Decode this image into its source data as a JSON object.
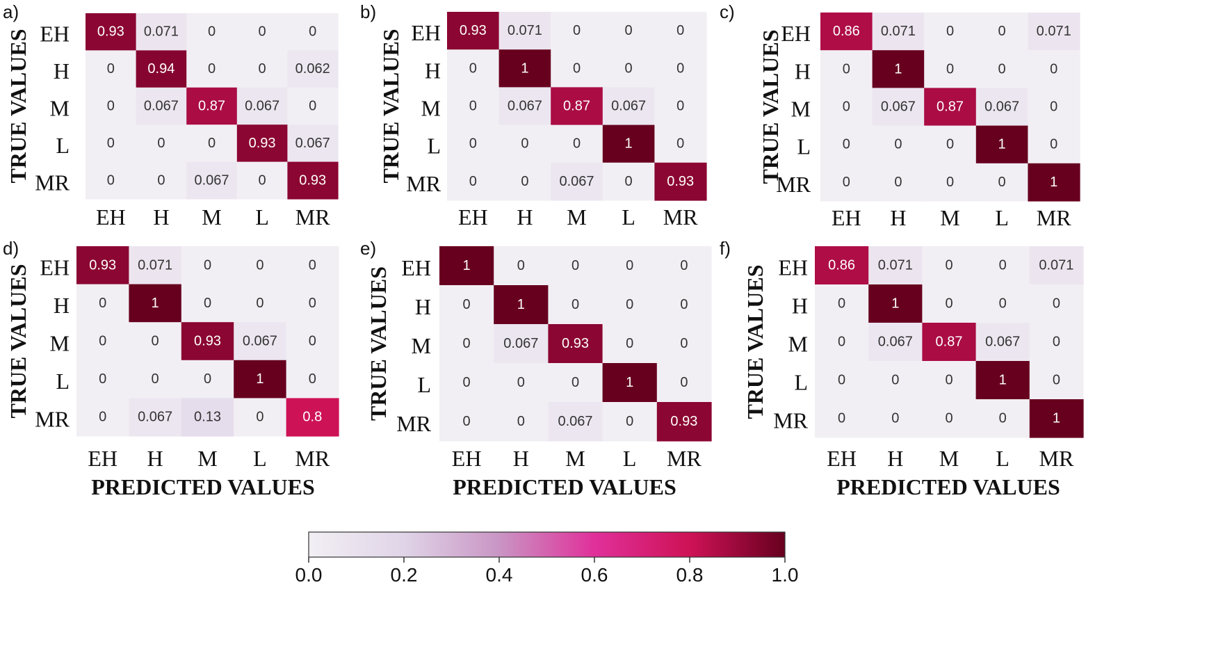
{
  "chart_data": [
    {
      "type": "heatmap",
      "panel": "a)",
      "row_labels": [
        "EH",
        "H",
        "M",
        "L",
        "MR"
      ],
      "col_labels": [
        "EH",
        "H",
        "M",
        "L",
        "MR"
      ],
      "ylabel": "TRUE VALUES",
      "xlabel": "",
      "values": [
        [
          "0.93",
          "0.071",
          "0",
          "0",
          "0"
        ],
        [
          "0",
          "0.94",
          "0",
          "0",
          "0.062"
        ],
        [
          "0",
          "0.067",
          "0.87",
          "0.067",
          "0"
        ],
        [
          "0",
          "0",
          "0",
          "0.93",
          "0.067"
        ],
        [
          "0",
          "0",
          "0.067",
          "0",
          "0.93"
        ]
      ]
    },
    {
      "type": "heatmap",
      "panel": "b)",
      "row_labels": [
        "EH",
        "H",
        "M",
        "L",
        "MR"
      ],
      "col_labels": [
        "EH",
        "H",
        "M",
        "L",
        "MR"
      ],
      "ylabel": "TRUE VALUES",
      "xlabel": "",
      "values": [
        [
          "0.93",
          "0.071",
          "0",
          "0",
          "0"
        ],
        [
          "0",
          "1",
          "0",
          "0",
          "0"
        ],
        [
          "0",
          "0.067",
          "0.87",
          "0.067",
          "0"
        ],
        [
          "0",
          "0",
          "0",
          "1",
          "0"
        ],
        [
          "0",
          "0",
          "0.067",
          "0",
          "0.93"
        ]
      ]
    },
    {
      "type": "heatmap",
      "panel": "c)",
      "row_labels": [
        "EH",
        "H",
        "M",
        "L",
        "MR"
      ],
      "col_labels": [
        "EH",
        "H",
        "M",
        "L",
        "MR"
      ],
      "ylabel": "TRUE VALUES",
      "xlabel": "",
      "values": [
        [
          "0.86",
          "0.071",
          "0",
          "0",
          "0.071"
        ],
        [
          "0",
          "1",
          "0",
          "0",
          "0"
        ],
        [
          "0",
          "0.067",
          "0.87",
          "0.067",
          "0"
        ],
        [
          "0",
          "0",
          "0",
          "1",
          "0"
        ],
        [
          "0",
          "0",
          "0",
          "0",
          "1"
        ]
      ]
    },
    {
      "type": "heatmap",
      "panel": "d)",
      "row_labels": [
        "EH",
        "H",
        "M",
        "L",
        "MR"
      ],
      "col_labels": [
        "EH",
        "H",
        "M",
        "L",
        "MR"
      ],
      "ylabel": "TRUE VALUES",
      "xlabel": "PREDICTED VALUES",
      "values": [
        [
          "0.93",
          "0.071",
          "0",
          "0",
          "0"
        ],
        [
          "0",
          "1",
          "0",
          "0",
          "0"
        ],
        [
          "0",
          "0",
          "0.93",
          "0.067",
          "0"
        ],
        [
          "0",
          "0",
          "0",
          "1",
          "0"
        ],
        [
          "0",
          "0.067",
          "0.13",
          "0",
          "0.8"
        ]
      ]
    },
    {
      "type": "heatmap",
      "panel": "e)",
      "row_labels": [
        "EH",
        "H",
        "M",
        "L",
        "MR"
      ],
      "col_labels": [
        "EH",
        "H",
        "M",
        "L",
        "MR"
      ],
      "ylabel": "TRUE VALUES",
      "xlabel": "PREDICTED VALUES",
      "values": [
        [
          "1",
          "0",
          "0",
          "0",
          "0"
        ],
        [
          "0",
          "1",
          "0",
          "0",
          "0"
        ],
        [
          "0",
          "0.067",
          "0.93",
          "0",
          "0"
        ],
        [
          "0",
          "0",
          "0",
          "1",
          "0"
        ],
        [
          "0",
          "0",
          "0.067",
          "0",
          "0.93"
        ]
      ]
    },
    {
      "type": "heatmap",
      "panel": "f)",
      "row_labels": [
        "EH",
        "H",
        "M",
        "L",
        "MR"
      ],
      "col_labels": [
        "EH",
        "H",
        "M",
        "L",
        "MR"
      ],
      "ylabel": "TRUE VALUES",
      "xlabel": "PREDICTED VALUES",
      "values": [
        [
          "0.86",
          "0.071",
          "0",
          "0",
          "0.071"
        ],
        [
          "0",
          "1",
          "0",
          "0",
          "0"
        ],
        [
          "0",
          "0.067",
          "0.87",
          "0.067",
          "0"
        ],
        [
          "0",
          "0",
          "0",
          "1",
          "0"
        ],
        [
          "0",
          "0",
          "0",
          "0",
          "1"
        ]
      ]
    }
  ],
  "colorbar": {
    "range": [
      0.0,
      1.0
    ],
    "ticks": [
      "0.0",
      "0.2",
      "0.4",
      "0.6",
      "0.8",
      "1.0"
    ],
    "colors": [
      "#f2eff4",
      "#e0d4e7",
      "#c995c4",
      "#e0309a",
      "#ce1256",
      "#67001f"
    ]
  }
}
